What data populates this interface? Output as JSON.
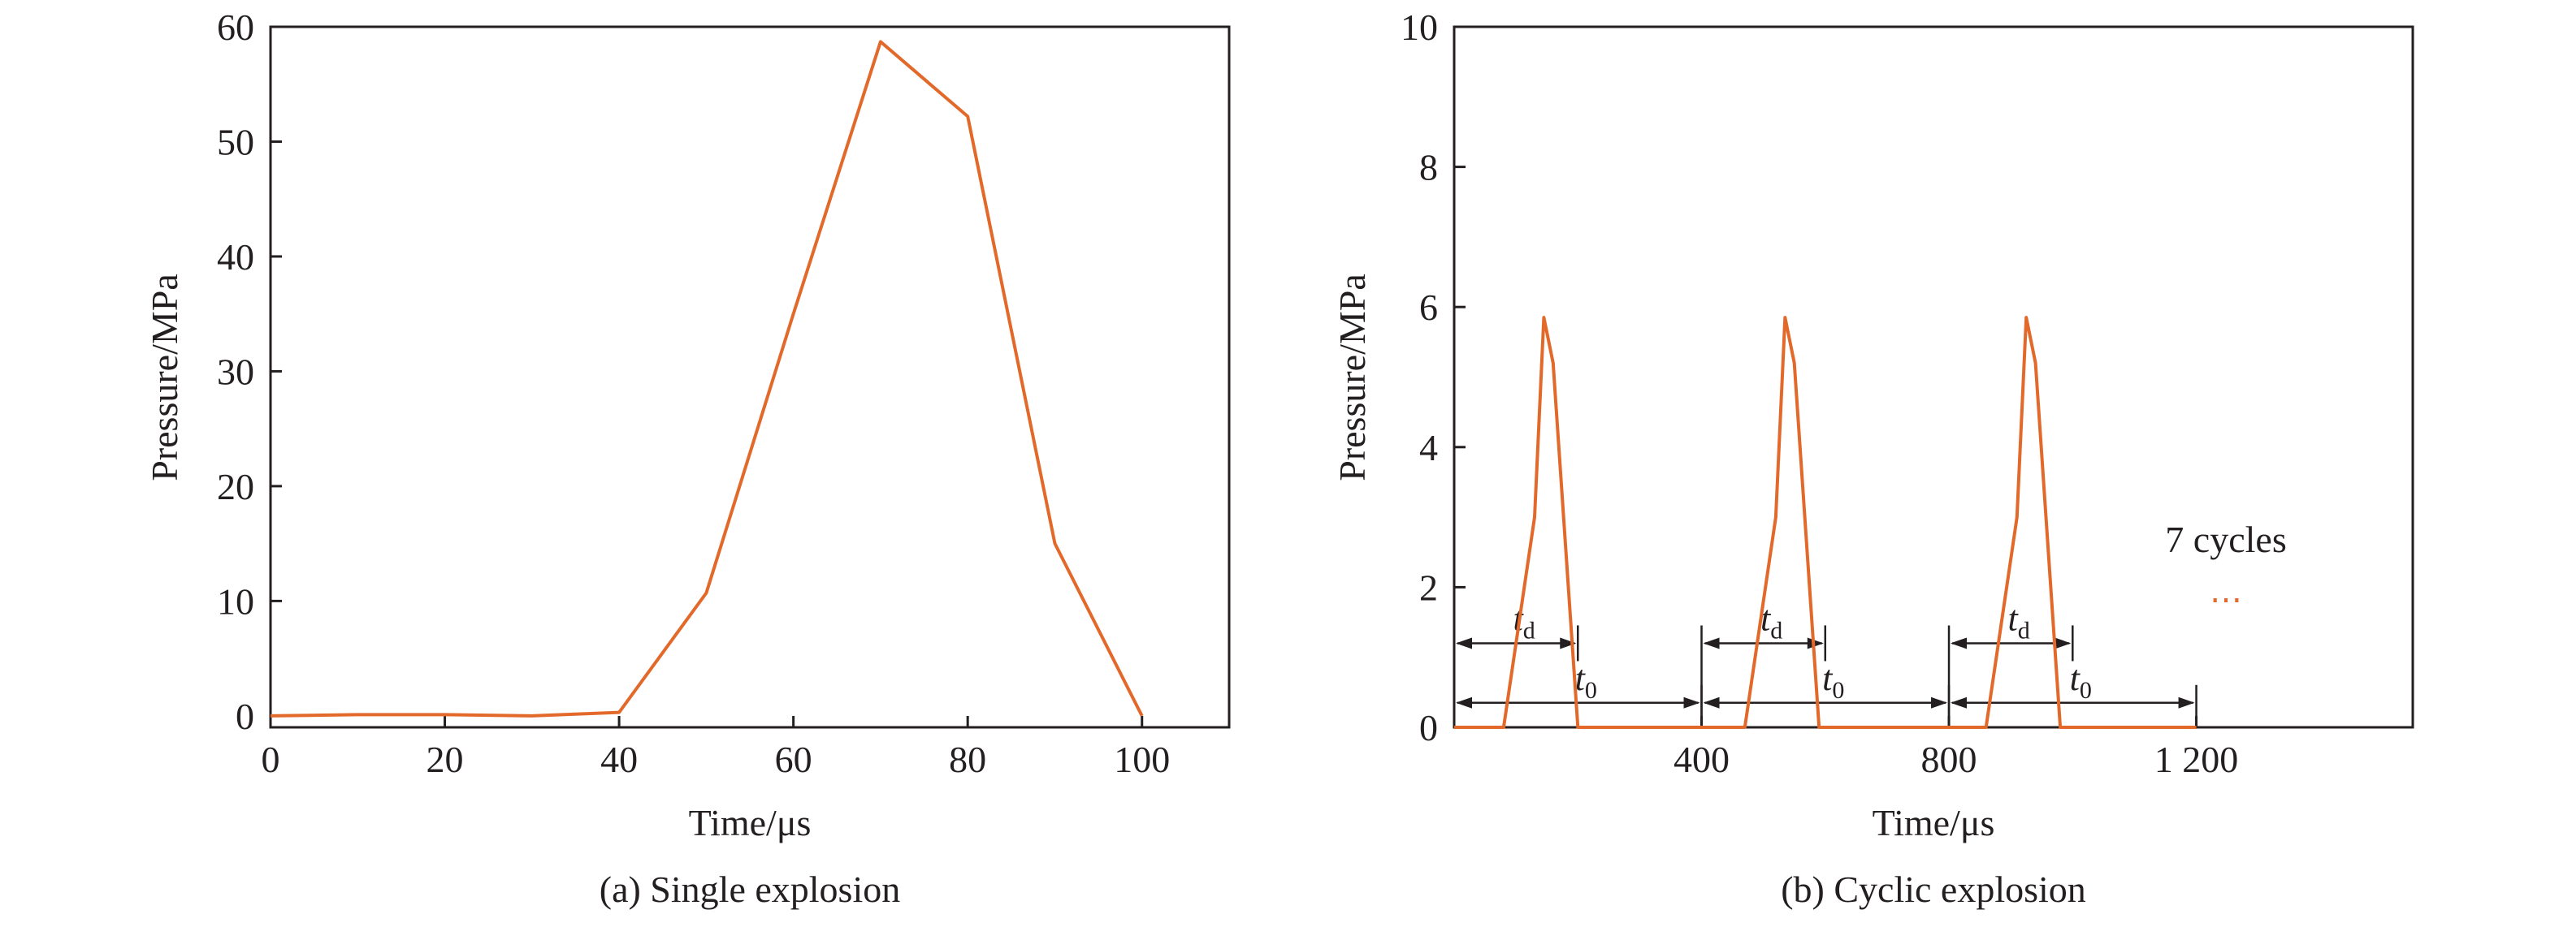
{
  "chart_data": [
    {
      "type": "line",
      "caption": "(a) Single explosion",
      "xlabel": "Time/μs",
      "ylabel": "Pressure/MPa",
      "xlim": [
        0,
        110
      ],
      "ylim": [
        -1,
        60
      ],
      "xticks": [
        0,
        20,
        40,
        60,
        80,
        100
      ],
      "yticks": [
        0,
        10,
        20,
        30,
        40,
        50,
        60
      ],
      "grid": false,
      "series": [
        {
          "color": "#e2692a",
          "x": [
            0,
            10,
            20,
            30,
            40,
            50,
            60,
            70,
            80,
            90,
            100
          ],
          "y": [
            0,
            0.1,
            0.1,
            0,
            0.3,
            10.7,
            35,
            58.7,
            52.2,
            15,
            0
          ]
        }
      ]
    },
    {
      "type": "line",
      "caption": "(b) Cyclic explosion",
      "xlabel": "Time/μs",
      "ylabel": "Pressure/MPa",
      "xlim": [
        0,
        1550
      ],
      "ylim": [
        0,
        10
      ],
      "xticks": [
        400,
        800,
        1200
      ],
      "xtick_labels": [
        "400",
        "800",
        "1 200"
      ],
      "yticks": [
        0,
        2,
        4,
        6,
        8,
        10
      ],
      "grid": false,
      "series": [
        {
          "color": "#e2692a",
          "x": [
            0,
            80,
            130,
            145,
            160,
            200,
            470,
            520,
            535,
            550,
            590,
            860,
            910,
            925,
            940,
            980,
            1200
          ],
          "y": [
            0,
            0,
            3.0,
            5.85,
            5.2,
            0,
            0,
            3.0,
            5.85,
            5.2,
            0,
            0,
            3.0,
            5.85,
            5.2,
            0,
            0
          ]
        }
      ],
      "annotations": {
        "cycles_text": "7 cycles",
        "ellipsis": "⋯",
        "td_main": "t",
        "td_sub": "d",
        "t0_main": "t",
        "t0_sub": "0",
        "cycle_starts": [
          0,
          400,
          800
        ],
        "td_duration": 200,
        "t0_duration": 400,
        "td_level": 1.2,
        "t0_level": 0.35
      }
    }
  ]
}
